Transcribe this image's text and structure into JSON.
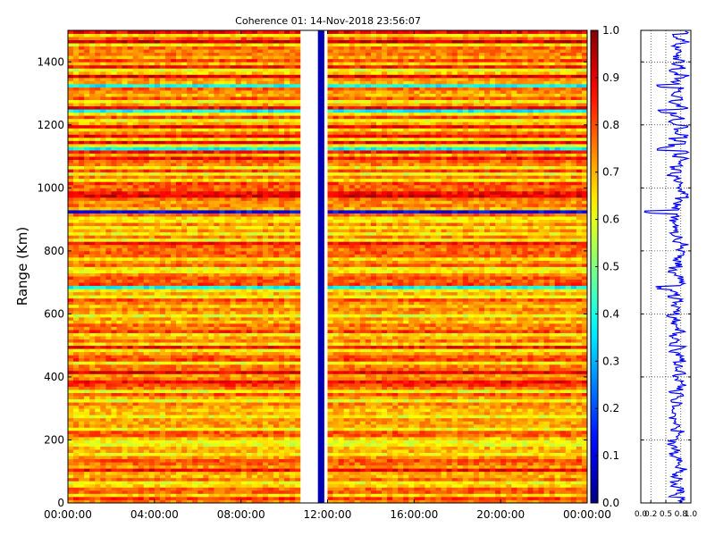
{
  "chart_data": [
    {
      "type": "heatmap",
      "title": "Coherence 01: 14-Nov-2018 23:56:07",
      "ylabel": "Range (Km)",
      "xlabel": "",
      "x_tick_labels": [
        "00:00:00",
        "04:00:00",
        "08:00:00",
        "12:00:00",
        "16:00:00",
        "20:00:00",
        "00:00:00"
      ],
      "x_ticks_hours": [
        0,
        4,
        8,
        12,
        16,
        20,
        24
      ],
      "xlim_hours": [
        0,
        24
      ],
      "y_ticks": [
        0,
        200,
        400,
        600,
        800,
        1000,
        1200,
        1400
      ],
      "ylim": [
        0,
        1500
      ],
      "value_range": [
        0,
        1
      ],
      "colormap": "jet",
      "data_gap_hours": [
        10.75,
        11.55
      ],
      "low_coherence_column_hours": [
        11.55,
        11.85
      ],
      "low_coherence_ranges_km": [
        925,
        685,
        1240,
        1325,
        1125
      ],
      "colorbar": {
        "ticks": [
          "0.0",
          "0.1",
          "0.2",
          "0.3",
          "0.4",
          "0.5",
          "0.6",
          "0.7",
          "0.8",
          "0.9",
          "1.0"
        ]
      }
    },
    {
      "type": "line",
      "x_tick_labels": [
        "0.0",
        "0.2",
        "0.5",
        "0.8",
        "1.0"
      ],
      "xlim": [
        0,
        1
      ],
      "ylim": [
        0,
        1500
      ],
      "grid": true,
      "line_color": "#0000ff"
    }
  ]
}
